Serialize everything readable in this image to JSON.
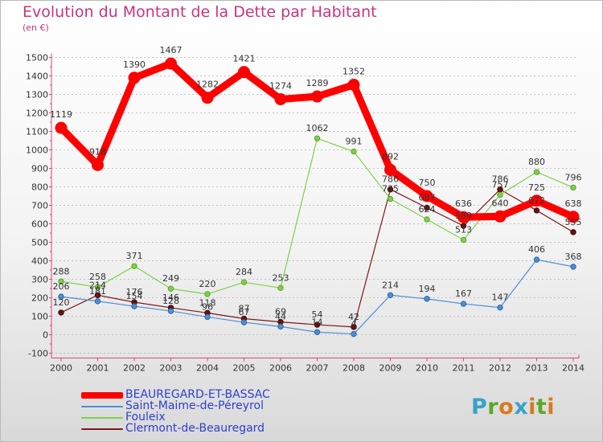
{
  "title": "Evolution du Montant de la Dette par Habitant",
  "unit_label": "(en €)",
  "logo_text": "Proxiti",
  "logo_colors": [
    "#37a3c9",
    "#5aa82a",
    "#d9791f",
    "#37a3c9",
    "#d9791f",
    "#5aa82a",
    "#d9791f"
  ],
  "chart_data": {
    "type": "line",
    "title": "Evolution du Montant de la Dette par Habitant",
    "ylabel": "(en €)",
    "xlabel": "",
    "x": [
      "2000",
      "2001",
      "2002",
      "2003",
      "2004",
      "2005",
      "2006",
      "2007",
      "2008",
      "2009",
      "2010",
      "2011",
      "2012",
      "2013",
      "2014"
    ],
    "ylim": [
      -100,
      1500
    ],
    "yticks": [
      -100,
      0,
      100,
      200,
      300,
      400,
      500,
      600,
      700,
      800,
      900,
      1000,
      1100,
      1200,
      1300,
      1400,
      1500
    ],
    "grid": "horizontal dashed",
    "legend_position": "bottom-left",
    "series": [
      {
        "name": "Clermont-de-Beauregard",
        "color": "#7a1a1a",
        "values": [
          120,
          214,
          176,
          146,
          118,
          87,
          69,
          54,
          42,
          786,
          687,
          589,
          786,
          672,
          555
        ]
      },
      {
        "name": "Fouleix",
        "color": "#7ed14a",
        "values": [
          288,
          258,
          371,
          249,
          220,
          284,
          253,
          1062,
          991,
          735,
          624,
          513,
          757,
          880,
          796
        ]
      },
      {
        "name": "Saint-Maime-de-Péreyrol",
        "color": "#4d8ed6",
        "values": [
          206,
          181,
          154,
          128,
          96,
          67,
          44,
          14,
          4,
          214,
          194,
          167,
          147,
          406,
          368
        ]
      },
      {
        "name": "BEAUREGARD-ET-BASSAC",
        "color": "#ff0000",
        "values": [
          1119,
          918,
          1390,
          1467,
          1282,
          1421,
          1274,
          1289,
          1352,
          892,
          750,
          636,
          640,
          725,
          638
        ]
      }
    ],
    "legend": [
      "BEAUREGARD-ET-BASSAC",
      "Saint-Maime-de-Péreyrol",
      "Fouleix",
      "Clermont-de-Beauregard"
    ]
  }
}
